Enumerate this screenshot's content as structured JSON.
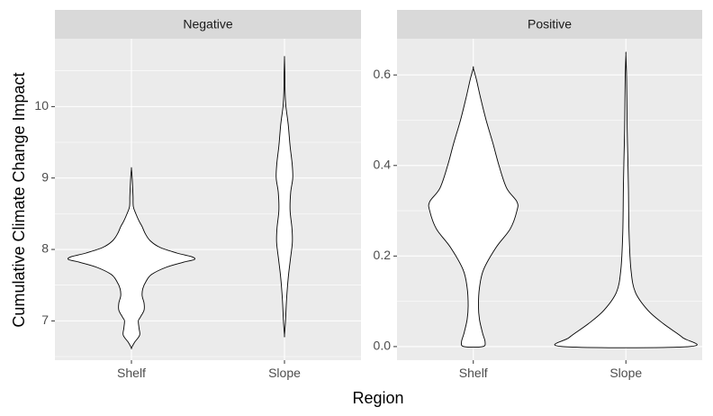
{
  "chart_data": {
    "type": "violin",
    "xlabel": "Region",
    "ylabel": "Cumulative Climate Change Impact",
    "categories": [
      "Shelf",
      "Slope"
    ],
    "panels": [
      {
        "title": "Negative",
        "ylim": [
          6.45,
          10.95
        ],
        "yticks": [
          7,
          8,
          9,
          10
        ],
        "violins": [
          {
            "category": "Shelf",
            "profile": [
              [
                6.62,
                0.0
              ],
              [
                6.7,
                0.05
              ],
              [
                6.8,
                0.13
              ],
              [
                6.9,
                0.12
              ],
              [
                7.0,
                0.11
              ],
              [
                7.05,
                0.14
              ],
              [
                7.15,
                0.2
              ],
              [
                7.25,
                0.2
              ],
              [
                7.35,
                0.17
              ],
              [
                7.45,
                0.18
              ],
              [
                7.55,
                0.23
              ],
              [
                7.65,
                0.32
              ],
              [
                7.75,
                0.55
              ],
              [
                7.82,
                0.82
              ],
              [
                7.86,
                1.0
              ],
              [
                7.9,
                0.95
              ],
              [
                7.95,
                0.72
              ],
              [
                8.03,
                0.45
              ],
              [
                8.12,
                0.3
              ],
              [
                8.22,
                0.22
              ],
              [
                8.32,
                0.17
              ],
              [
                8.4,
                0.12
              ],
              [
                8.5,
                0.07
              ],
              [
                8.6,
                0.03
              ],
              [
                8.75,
                0.025
              ],
              [
                9.0,
                0.012
              ],
              [
                9.13,
                0.0
              ]
            ]
          },
          {
            "category": "Slope",
            "profile": [
              [
                6.8,
                0.0
              ],
              [
                7.0,
                0.05
              ],
              [
                7.3,
                0.1
              ],
              [
                7.6,
                0.18
              ],
              [
                7.85,
                0.28
              ],
              [
                8.1,
                0.38
              ],
              [
                8.3,
                0.36
              ],
              [
                8.55,
                0.27
              ],
              [
                8.8,
                0.3
              ],
              [
                9.0,
                0.4
              ],
              [
                9.2,
                0.37
              ],
              [
                9.45,
                0.27
              ],
              [
                9.75,
                0.18
              ],
              [
                10.0,
                0.07
              ],
              [
                10.2,
                0.03
              ],
              [
                10.5,
                0.015
              ],
              [
                10.68,
                0.0
              ]
            ]
          }
        ]
      },
      {
        "title": "Positive",
        "ylim": [
          -0.03,
          0.68
        ],
        "yticks": [
          0.0,
          0.2,
          0.4,
          0.6
        ],
        "ytick_labels": [
          "0.0",
          "0.2",
          "0.4",
          "0.6"
        ],
        "violins": [
          {
            "category": "Shelf",
            "profile": [
              [
                0.0,
                0.18
              ],
              [
                0.01,
                0.23
              ],
              [
                0.03,
                0.18
              ],
              [
                0.06,
                0.12
              ],
              [
                0.09,
                0.1
              ],
              [
                0.13,
                0.12
              ],
              [
                0.17,
                0.2
              ],
              [
                0.22,
                0.45
              ],
              [
                0.26,
                0.72
              ],
              [
                0.3,
                0.85
              ],
              [
                0.32,
                0.85
              ],
              [
                0.35,
                0.65
              ],
              [
                0.4,
                0.5
              ],
              [
                0.45,
                0.38
              ],
              [
                0.5,
                0.25
              ],
              [
                0.55,
                0.14
              ],
              [
                0.59,
                0.06
              ],
              [
                0.615,
                0.0
              ]
            ]
          },
          {
            "category": "Slope",
            "profile": [
              [
                0.0,
                1.0
              ],
              [
                0.02,
                0.9
              ],
              [
                0.05,
                0.6
              ],
              [
                0.08,
                0.35
              ],
              [
                0.12,
                0.15
              ],
              [
                0.17,
                0.08
              ],
              [
                0.25,
                0.05
              ],
              [
                0.35,
                0.04
              ],
              [
                0.42,
                0.03
              ],
              [
                0.48,
                0.02
              ],
              [
                0.55,
                0.015
              ],
              [
                0.6,
                0.01
              ],
              [
                0.645,
                0.0
              ]
            ]
          }
        ]
      }
    ],
    "grid": true,
    "colors": {
      "panel_bg": "#ebebeb",
      "strip_bg": "#d9d9d9",
      "grid": "#ffffff",
      "violin_fill": "#ffffff",
      "violin_stroke": "#000000"
    }
  }
}
